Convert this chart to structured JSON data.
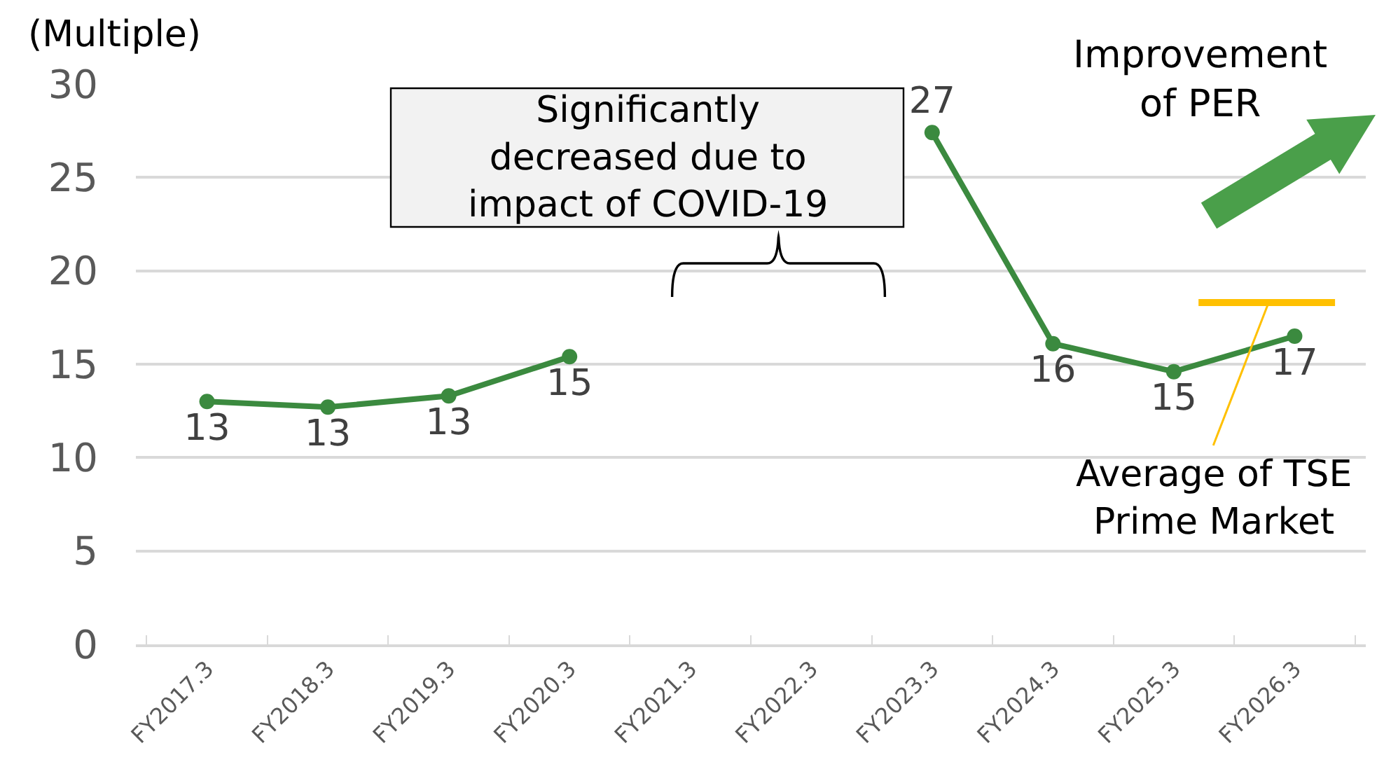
{
  "chart_data": {
    "type": "line",
    "ylabel": "(Multiple)",
    "categories": [
      "FY2017.3",
      "FY2018.3",
      "FY2019.3",
      "FY2020.3",
      "FY2021.3",
      "FY2022.3",
      "FY2023.3",
      "FY2024.3",
      "FY2025.3",
      "FY2026.3"
    ],
    "series": [
      {
        "color": "#3b8a3f",
        "values": [
          13.0,
          12.7,
          13.3,
          15.4,
          null,
          null,
          27.4,
          16.1,
          14.6,
          16.5
        ],
        "value_labels": [
          "13",
          "13",
          "13",
          "15",
          null,
          null,
          "27",
          "16",
          "15",
          "17"
        ]
      }
    ],
    "ylim": [
      0,
      30
    ],
    "yticks": [
      0,
      5,
      10,
      15,
      20,
      25,
      30
    ],
    "grid": "y",
    "marker": "circle",
    "line_style": "solid",
    "annotations": [
      "Significantly decreased due to impact of COVID-19",
      "Improvement of PER"
    ],
    "ref_lines": [
      {
        "axis": "y",
        "value": 18.3,
        "label": "Average of TSE Prime Market",
        "color": "#ffc000"
      }
    ]
  }
}
